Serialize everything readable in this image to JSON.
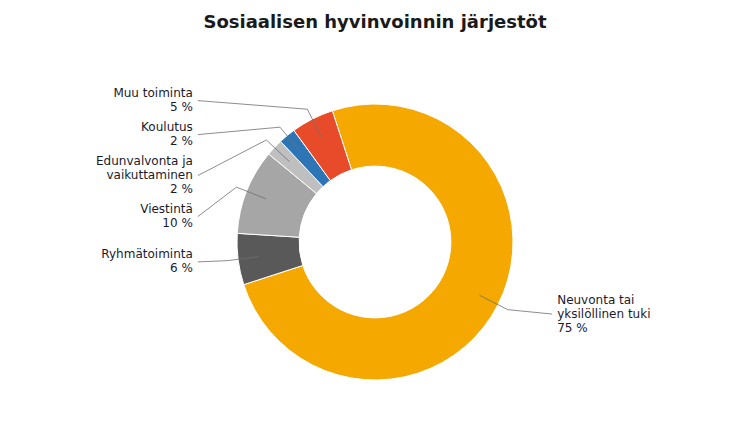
{
  "chart_data": {
    "type": "donut",
    "title": "Sosiaalisen hyvinvoinnin järjestöt",
    "categories": [
      "Neuvonta tai\nyksilöllinen tuki\n75 %",
      "Ryhmätoiminta\n6 %",
      "Viestintä\n10 %",
      "Edunvalvonta ja\nvaikuttaminen\n2 %",
      "Koulutus\n2 %",
      "Muu toiminta\n5 %"
    ],
    "values": [
      75,
      6,
      10,
      2,
      2,
      5
    ],
    "colors": [
      "#F5A800",
      "#595959",
      "#A6A6A6",
      "#BFBFBF",
      "#2E75B6",
      "#E84B2A"
    ]
  }
}
